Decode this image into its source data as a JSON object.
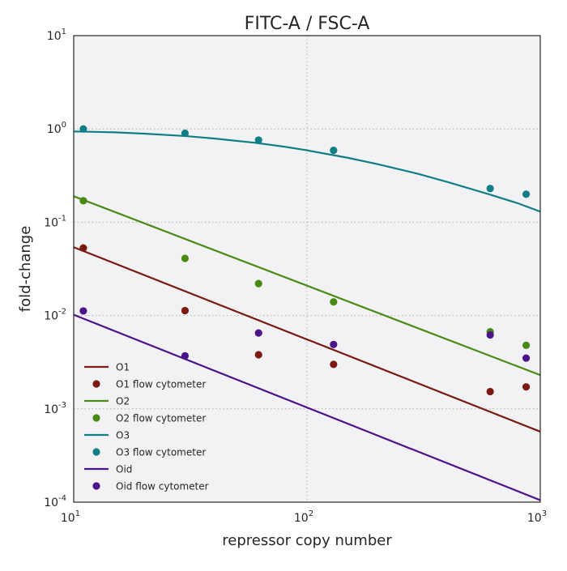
{
  "chart_data": {
    "type": "line",
    "title": "FITC-A / FSC-A",
    "xlabel": "repressor copy number",
    "ylabel": "fold-change",
    "xscale": "log",
    "yscale": "log",
    "xlim": [
      10,
      1000
    ],
    "ylim": [
      0.0001,
      10
    ],
    "grid": true,
    "legend_position": "lower-left",
    "x_ticks": [
      {
        "value": 10,
        "base": "10",
        "exp": "1"
      },
      {
        "value": 100,
        "base": "10",
        "exp": "2"
      },
      {
        "value": 1000,
        "base": "10",
        "exp": "3"
      }
    ],
    "y_ticks": [
      {
        "value": 0.0001,
        "base": "10",
        "exp": "-4"
      },
      {
        "value": 0.001,
        "base": "10",
        "exp": "-3"
      },
      {
        "value": 0.01,
        "base": "10",
        "exp": "-2"
      },
      {
        "value": 0.1,
        "base": "10",
        "exp": "-1"
      },
      {
        "value": 1,
        "base": "10",
        "exp": "0"
      },
      {
        "value": 10,
        "base": "10",
        "exp": "1"
      }
    ],
    "legend": [
      {
        "label": "O1",
        "kind": "line",
        "color": "#7a1a12"
      },
      {
        "label": "O1 flow cytometer",
        "kind": "marker",
        "color": "#7a1a12"
      },
      {
        "label": "O2",
        "kind": "line",
        "color": "#4a8a12"
      },
      {
        "label": "O2 flow cytometer",
        "kind": "marker",
        "color": "#4a8a12"
      },
      {
        "label": "O3",
        "kind": "line",
        "color": "#117e85"
      },
      {
        "label": "O3 flow cytometer",
        "kind": "marker",
        "color": "#117e85"
      },
      {
        "label": "Oid",
        "kind": "line",
        "color": "#4d1389"
      },
      {
        "label": "Oid flow cytometer",
        "kind": "marker",
        "color": "#4d1389"
      }
    ],
    "series": [
      {
        "name": "O1",
        "color": "#7a1a12",
        "line": {
          "x": [
            10,
            1000
          ],
          "y": [
            0.054,
            0.00057
          ]
        },
        "points": {
          "x": [
            11,
            30,
            62,
            130,
            610,
            870
          ],
          "y": [
            0.053,
            0.0113,
            0.0038,
            0.003,
            0.00153,
            0.00172
          ]
        }
      },
      {
        "name": "O2",
        "color": "#4a8a12",
        "line": {
          "x": [
            10,
            1000
          ],
          "y": [
            0.19,
            0.0023
          ]
        },
        "points": {
          "x": [
            11,
            30,
            62,
            130,
            610,
            870
          ],
          "y": [
            0.17,
            0.041,
            0.022,
            0.014,
            0.0067,
            0.0048
          ]
        }
      },
      {
        "name": "O3",
        "color": "#117e85",
        "line": {
          "x": [
            10,
            15,
            20,
            30,
            40,
            60,
            80,
            100,
            150,
            200,
            300,
            400,
            600,
            800,
            1000
          ],
          "y": [
            0.94,
            0.92,
            0.89,
            0.84,
            0.79,
            0.71,
            0.645,
            0.59,
            0.49,
            0.42,
            0.33,
            0.27,
            0.2,
            0.16,
            0.13
          ]
        },
        "points": {
          "x": [
            11,
            30,
            62,
            130,
            610,
            870
          ],
          "y": [
            1.0,
            0.9,
            0.76,
            0.59,
            0.23,
            0.2
          ]
        }
      },
      {
        "name": "Oid",
        "color": "#4d1389",
        "line": {
          "x": [
            10,
            1000
          ],
          "y": [
            0.0102,
            0.000105
          ]
        },
        "points": {
          "x": [
            11,
            30,
            62,
            130,
            610,
            870
          ],
          "y": [
            0.0112,
            0.0037,
            0.0065,
            0.0049,
            0.0062,
            0.0035
          ]
        }
      }
    ]
  }
}
